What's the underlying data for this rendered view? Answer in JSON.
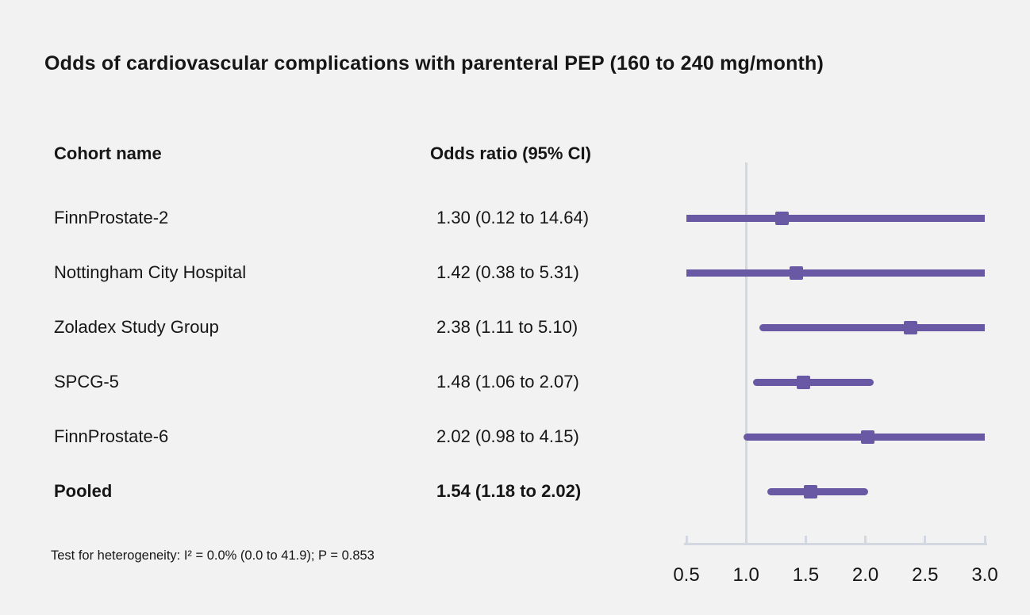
{
  "chart_data": {
    "type": "scatter",
    "variant": "forest-plot",
    "title": "Odds of cardiovascular complications with parenteral PEP (160 to 240 mg/month)",
    "columns": {
      "cohort": "Cohort name",
      "odds_ratio": "Odds ratio (95% CI)"
    },
    "rows": [
      {
        "name": "FinnProstate-2",
        "or_text": "1.30 (0.12 to 14.64)",
        "value": 1.3,
        "lo": 0.12,
        "hi": 14.64,
        "bold": false
      },
      {
        "name": "Nottingham City Hospital",
        "or_text": "1.42 (0.38 to 5.31)",
        "value": 1.42,
        "lo": 0.38,
        "hi": 5.31,
        "bold": false
      },
      {
        "name": "Zoladex Study Group",
        "or_text": "2.38 (1.11 to 5.10)",
        "value": 2.38,
        "lo": 1.11,
        "hi": 5.1,
        "bold": false
      },
      {
        "name": "SPCG-5",
        "or_text": "1.48 (1.06 to 2.07)",
        "value": 1.48,
        "lo": 1.06,
        "hi": 2.07,
        "bold": false
      },
      {
        "name": "FinnProstate-6",
        "or_text": "2.02 (0.98 to 4.15)",
        "value": 2.02,
        "lo": 0.98,
        "hi": 4.15,
        "bold": false
      },
      {
        "name": "Pooled",
        "or_text": "1.54 (1.18 to 2.02)",
        "value": 1.54,
        "lo": 1.18,
        "hi": 2.02,
        "bold": true
      }
    ],
    "axis": {
      "min": 0.5,
      "max": 3.0,
      "ticks": [
        0.5,
        1.0,
        1.5,
        2.0,
        2.5,
        3.0
      ],
      "tick_labels": [
        "0.5",
        "1.0",
        "1.5",
        "2.0",
        "2.5",
        "3.0"
      ],
      "reference_line_at": 1.0
    },
    "footer": "Test for heterogeneity: I² = 0.0% (0.0 to 41.9); P = 0.853",
    "colors": {
      "marker": "#6959a5",
      "line": "#6959a5",
      "reference_line": "#d3d8e0",
      "axis": "#d3d8e0",
      "background": "#f2f2f2",
      "text": "#161616"
    },
    "legend": null,
    "grid": false
  }
}
